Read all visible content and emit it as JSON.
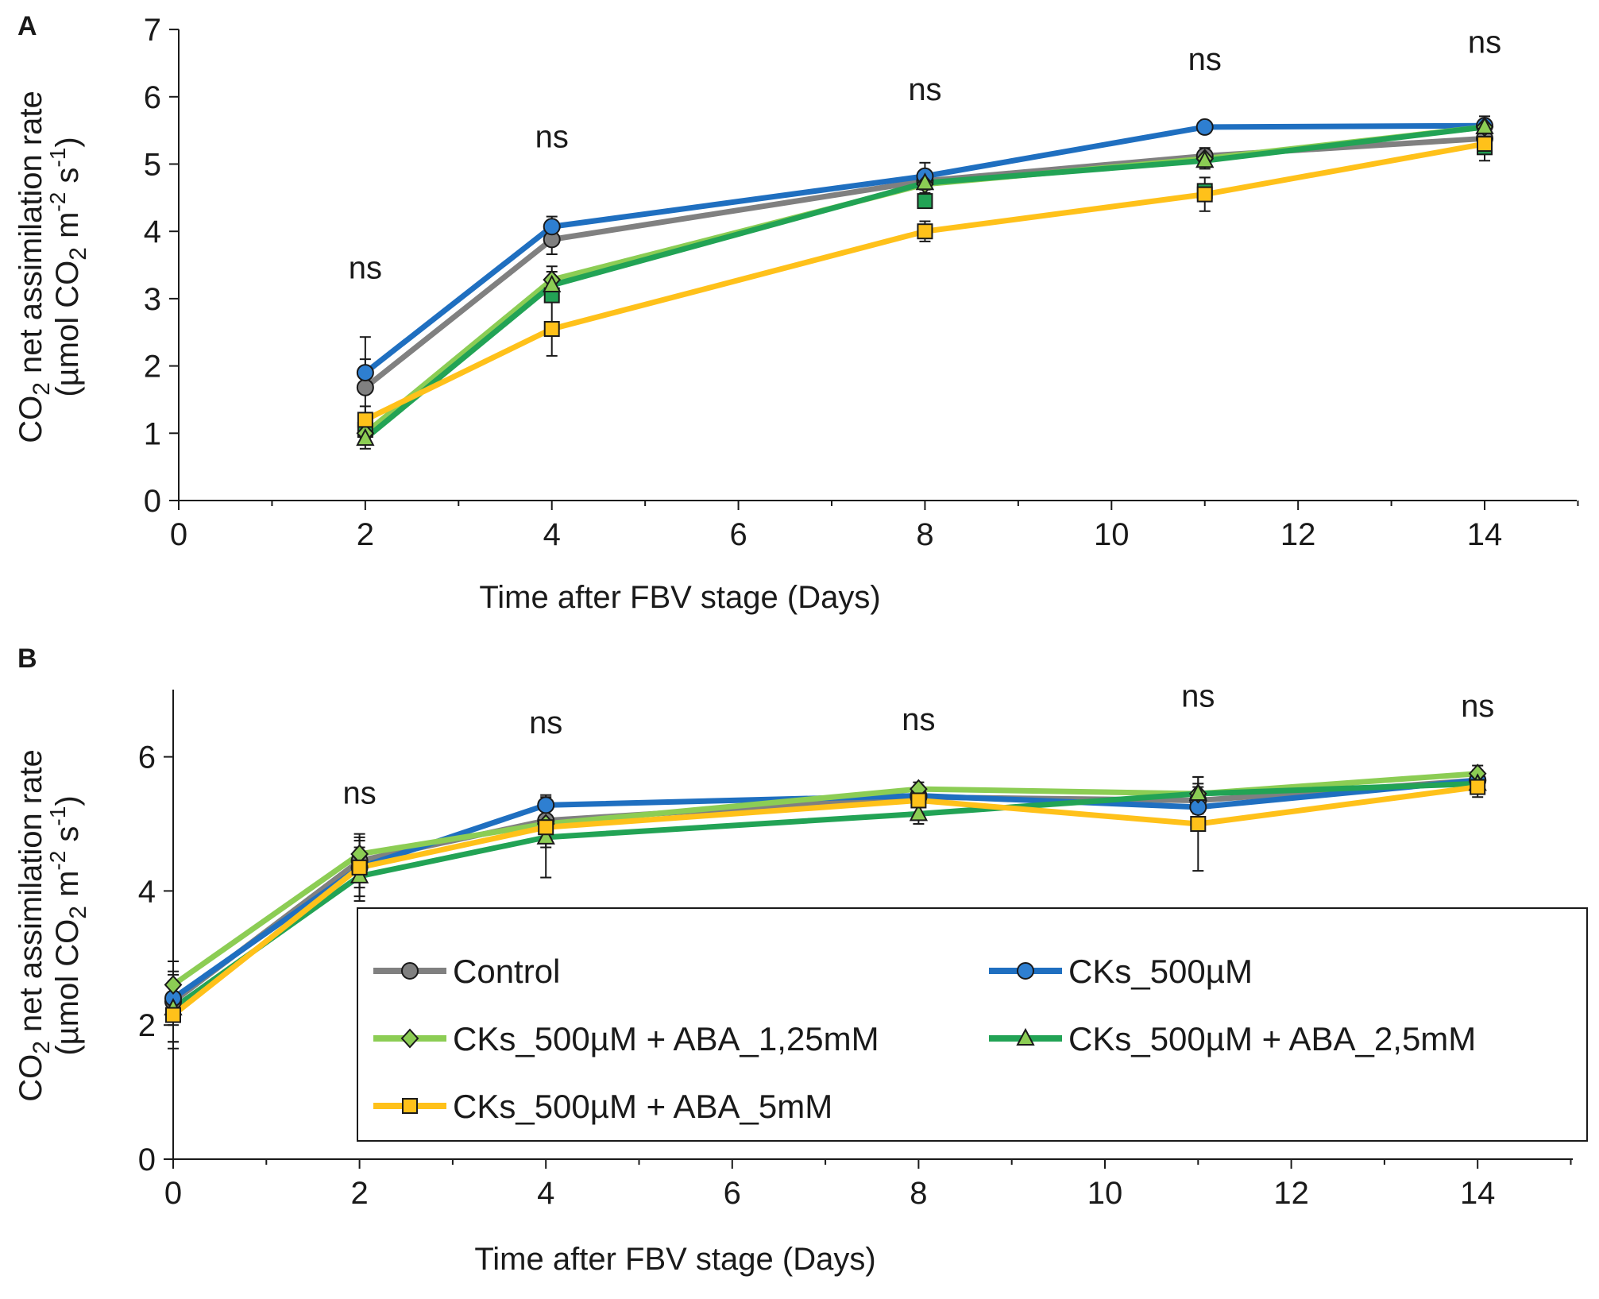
{
  "figure": {
    "panel_labels": [
      "A",
      "B"
    ],
    "xlabel": "Time after FBV stage (Days)",
    "ylabel_line1_parts": [
      "CO",
      "2",
      " net assimilation rate"
    ],
    "ylabel_line2_parts": [
      "(µmol CO",
      "2",
      " m",
      "-2",
      " s",
      "-1",
      ")"
    ],
    "sig_label": "ns"
  },
  "series_styles": {
    "Control": {
      "color": "#808080",
      "marker": "circle",
      "fill": "#808080"
    },
    "CKs_500µM": {
      "color": "#1f6fc0",
      "marker": "circle",
      "fill": "#2e7fd1"
    },
    "CKs_500µM + ABA_1,25mM": {
      "color": "#8ccd54",
      "marker": "diamond",
      "fill": "#8ccd54"
    },
    "CKs_500µM + ABA_2,5mM": {
      "color": "#22a355",
      "marker": "triangle",
      "fill": "#8ccd54"
    },
    "CKs_500µM + ABA_5mM": {
      "color": "#ffc11a",
      "marker": "square",
      "fill": "#ffc11a"
    }
  },
  "legend": {
    "entries": [
      "Control",
      "CKs_500µM",
      "CKs_500µM + ABA_1,25mM",
      "CKs_500µM + ABA_2,5mM",
      "CKs_500µM + ABA_5mM"
    ]
  },
  "chart_data": [
    {
      "panel": "A",
      "type": "line",
      "xlabel": "Time after FBV stage (Days)",
      "ylabel": "CO2 net assimilation rate (µmol CO2 m-2 s-1)",
      "xlim": [
        0,
        15
      ],
      "ylim": [
        0,
        7
      ],
      "xticks": [
        0,
        2,
        4,
        6,
        8,
        10,
        12,
        14
      ],
      "yticks": [
        0,
        1,
        2,
        3,
        4,
        5,
        6,
        7
      ],
      "annotations": [
        {
          "x": 2,
          "y": 3.3,
          "text": "ns"
        },
        {
          "x": 4,
          "y": 5.25,
          "text": "ns"
        },
        {
          "x": 8,
          "y": 5.95,
          "text": "ns"
        },
        {
          "x": 11,
          "y": 6.4,
          "text": "ns"
        },
        {
          "x": 14,
          "y": 6.65,
          "text": "ns"
        }
      ],
      "series": [
        {
          "name": "Control",
          "x": [
            2,
            4,
            8,
            11,
            14
          ],
          "y": [
            1.68,
            3.88,
            4.75,
            5.12,
            5.38
          ],
          "err": [
            0.75,
            0.22,
            0.12,
            0.12,
            0.1
          ]
        },
        {
          "name": "CKs_500µM",
          "x": [
            2,
            4,
            8,
            11,
            14
          ],
          "y": [
            1.9,
            4.07,
            4.82,
            5.55,
            5.57
          ],
          "err": [
            0.2,
            0.15,
            0.2,
            0.06,
            0.14
          ]
        },
        {
          "name": "CKs_500µM + ABA_1,25mM",
          "x": [
            2,
            4,
            8,
            11,
            14
          ],
          "y": [
            1.0,
            3.28,
            4.7,
            5.08,
            5.55
          ],
          "err": [
            0.15,
            0.2,
            0.15,
            0.12,
            0.1
          ]
        },
        {
          "name": "CKs_500µM + ABA_2,5mM",
          "x": [
            2,
            4,
            8,
            11,
            14
          ],
          "y": [
            0.92,
            3.2,
            4.72,
            5.05,
            5.55
          ],
          "err": [
            0.15,
            0.2,
            0.15,
            0.12,
            0.1
          ]
        },
        {
          "name": "CKs_500µM + ABA_5mM",
          "x": [
            2,
            4,
            8,
            11,
            14
          ],
          "y": [
            1.2,
            2.55,
            4.0,
            4.55,
            5.3
          ],
          "err": [
            0.2,
            0.4,
            0.15,
            0.25,
            0.25
          ]
        }
      ],
      "extra_series_overlay": {
        "name": "CKs_500µM + ABA_2,5mM",
        "squares": {
          "x": [
            2,
            4,
            8,
            11,
            14
          ],
          "y": [
            1.05,
            3.05,
            4.45,
            4.6,
            5.25
          ]
        }
      }
    },
    {
      "panel": "B",
      "type": "line",
      "xlabel": "Time after FBV stage (Days)",
      "ylabel": "CO2 net assimilation rate (µmol CO2 m-2 s-1)",
      "xlim": [
        0,
        15
      ],
      "ylim": [
        0,
        7
      ],
      "xticks": [
        0,
        2,
        4,
        6,
        8,
        10,
        12,
        14
      ],
      "yticks": [
        0,
        2,
        4,
        6
      ],
      "annotations": [
        {
          "x": 2,
          "y": 5.3,
          "text": "ns"
        },
        {
          "x": 4,
          "y": 6.35,
          "text": "ns"
        },
        {
          "x": 8,
          "y": 6.4,
          "text": "ns"
        },
        {
          "x": 11,
          "y": 6.75,
          "text": "ns"
        },
        {
          "x": 14,
          "y": 6.6,
          "text": "ns"
        }
      ],
      "series": [
        {
          "name": "Control",
          "x": [
            0,
            2,
            4,
            8,
            11,
            14
          ],
          "y": [
            2.35,
            4.45,
            5.05,
            5.4,
            5.35,
            5.65
          ],
          "err": [
            0.6,
            0.3,
            0.2,
            0.15,
            0.2,
            0.15
          ]
        },
        {
          "name": "CKs_500µM",
          "x": [
            0,
            2,
            4,
            8,
            11,
            14
          ],
          "y": [
            2.4,
            4.35,
            5.28,
            5.42,
            5.25,
            5.65
          ],
          "err": [
            0.4,
            0.3,
            0.15,
            0.15,
            0.2,
            0.15
          ]
        },
        {
          "name": "CKs_500µM + ABA_1,25mM",
          "x": [
            0,
            2,
            4,
            8,
            11,
            14
          ],
          "y": [
            2.6,
            4.55,
            5.0,
            5.52,
            5.45,
            5.75
          ],
          "err": [
            0.35,
            0.25,
            0.2,
            0.1,
            0.15,
            0.12
          ]
        },
        {
          "name": "CKs_500µM + ABA_2,5mM",
          "x": [
            0,
            2,
            4,
            8,
            11,
            14
          ],
          "y": [
            2.25,
            4.22,
            4.8,
            5.15,
            5.45,
            5.6
          ],
          "err": [
            0.5,
            0.3,
            0.6,
            0.15,
            0.25,
            0.15
          ]
        },
        {
          "name": "CKs_500µM + ABA_5mM",
          "x": [
            0,
            2,
            4,
            8,
            11,
            14
          ],
          "y": [
            2.15,
            4.35,
            4.95,
            5.35,
            5.0,
            5.55
          ],
          "err": [
            0.5,
            0.5,
            0.3,
            0.2,
            0.7,
            0.15
          ]
        }
      ]
    }
  ]
}
